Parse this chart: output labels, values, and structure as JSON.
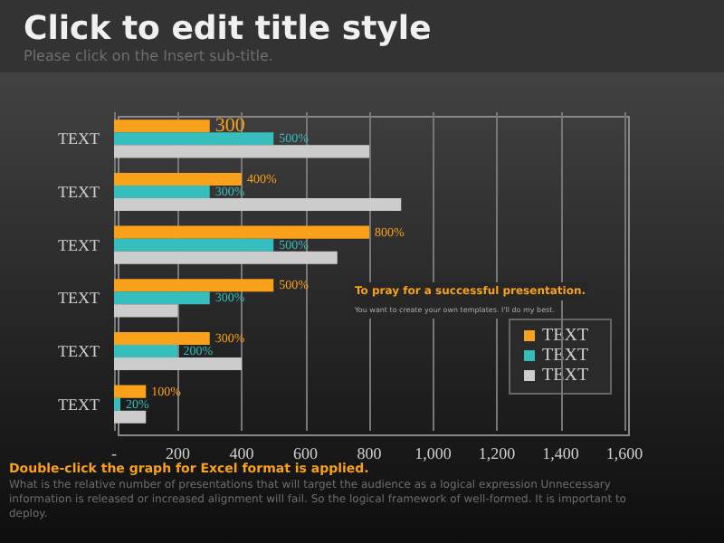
{
  "chart_data": {
    "type": "bar",
    "orientation": "horizontal",
    "title": "Click to edit title style",
    "subtitle": "Please click on the Insert sub-title.",
    "categories": [
      "TEXT",
      "TEXT",
      "TEXT",
      "TEXT",
      "TEXT",
      "TEXT"
    ],
    "series": [
      {
        "name": "TEXT",
        "color": "#f9a11b",
        "values": [
          300,
          400,
          800,
          500,
          300,
          100
        ],
        "value_labels": [
          "300",
          "400%",
          "800%",
          "500%",
          "300%",
          "100%"
        ]
      },
      {
        "name": "TEXT",
        "color": "#38bdbd",
        "values": [
          500,
          300,
          500,
          300,
          200,
          20
        ],
        "value_labels": [
          "500%",
          "300%",
          "500%",
          "300%",
          "200%",
          "20%"
        ]
      },
      {
        "name": "TEXT",
        "color": "#cccccc",
        "values": [
          800,
          900,
          700,
          200,
          400,
          100
        ]
      }
    ],
    "xlim": [
      0,
      1600
    ],
    "xticks": [
      {
        "value": 0,
        "label": "-"
      },
      200,
      400,
      600,
      800,
      {
        "value": 1000,
        "label": "1,000"
      },
      {
        "value": 1200,
        "label": "1,200"
      },
      {
        "value": 1400,
        "label": "1,400"
      },
      {
        "value": 1600,
        "label": "1,600"
      }
    ],
    "grid": "x",
    "legend": "bottom right",
    "annotations": [
      "To pray for a successful presentation.",
      "You want to create your own templates. I'll do my best.",
      "Double-click the graph for Excel format is applied.",
      "What is the relative number of presentations that will target the audience as a logical expression Unnecessary information is released or increased alignment will fail. So the logical framework of well-formed. It is important to deploy."
    ]
  }
}
